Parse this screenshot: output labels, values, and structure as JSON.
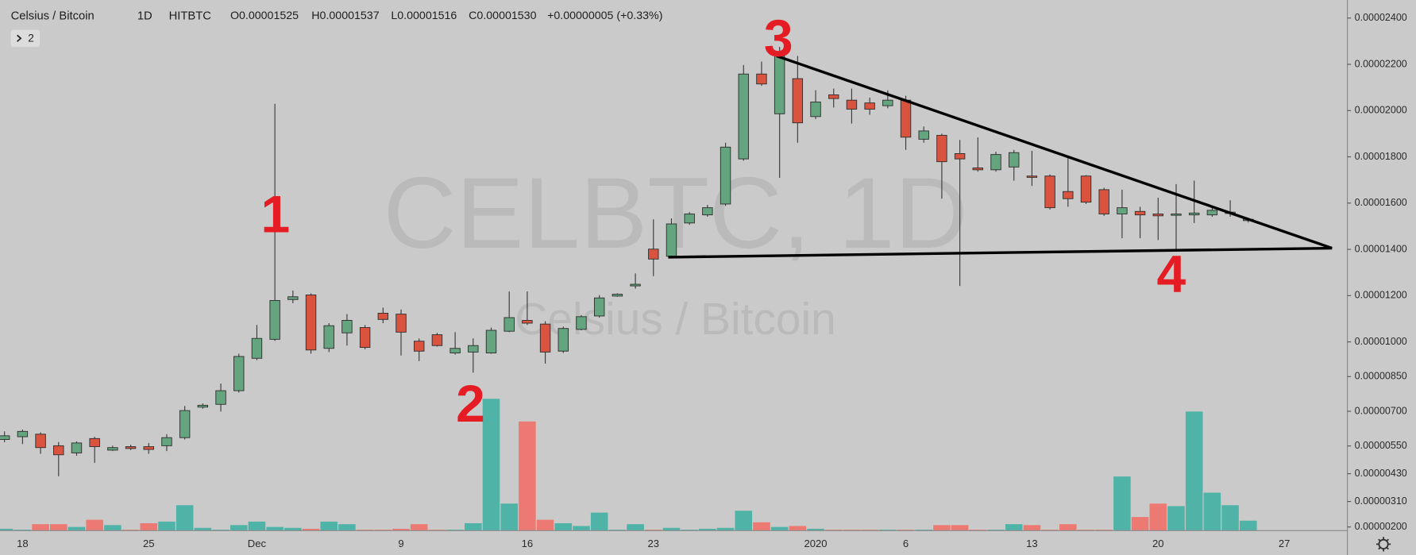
{
  "chart_data": {
    "type": "candlestick",
    "header": {
      "symbol": "Celsius / Bitcoin",
      "interval": "1D",
      "exchange": "HITBTC",
      "open": "O0.00001525",
      "high": "H0.00001537",
      "low": "L0.00001516",
      "close": "C0.00001530",
      "change": "+0.00000005 (+0.33%)",
      "indicators": 2
    },
    "watermark": [
      "CELBTC, 1D",
      "Celsius / Bitcoin"
    ],
    "annotations": [
      "1",
      "2",
      "3",
      "4"
    ],
    "categories": [
      null,
      "18",
      null,
      null,
      null,
      null,
      null,
      null,
      "25",
      null,
      null,
      null,
      null,
      null,
      "Dec",
      null,
      null,
      null,
      null,
      null,
      null,
      null,
      "9",
      null,
      null,
      null,
      null,
      null,
      null,
      "16",
      null,
      null,
      null,
      null,
      null,
      null,
      "23",
      null,
      null,
      null,
      null,
      null,
      null,
      null,
      null,
      "2020",
      null,
      null,
      null,
      null,
      "6",
      null,
      null,
      null,
      null,
      null,
      null,
      "13",
      null,
      null,
      null,
      null,
      null,
      null,
      "20",
      null,
      null,
      null,
      null,
      null,
      null,
      "27"
    ],
    "open": [
      5.78e-06,
      5.9e-06,
      6.01e-06,
      5.51e-06,
      5.2e-06,
      5.82e-06,
      5.32e-06,
      5.47e-06,
      5.47e-06,
      5.51e-06,
      5.86e-06,
      7.18e-06,
      7.3e-06,
      7.89e-06,
      9.29e-06,
      1.011e-05,
      1.183e-05,
      1.203e-05,
      9.72e-06,
      1.039e-05,
      1.062e-05,
      1.124e-05,
      1.12e-05,
      1.003e-05,
      1.031e-05,
      9.52e-06,
      9.56e-06,
      9.52e-06,
      1.046e-05,
      1.093e-05,
      1.077e-05,
      9.6e-06,
      1.054e-05,
      1.112e-05,
      1.198e-05,
      1.242e-05,
      1.401e-05,
      1.37e-05,
      1.514e-05,
      1.549e-05,
      1.596e-05,
      1.791e-05,
      2.158e-05,
      1.986e-05,
      2.138e-05,
      1.974e-05,
      2.068e-05,
      2.045e-05,
      2.033e-05,
      2.021e-05,
      2.045e-05,
      1.876e-05,
      1.893e-05,
      1.814e-05,
      1.752e-05,
      1.744e-05,
      1.756e-05,
      1.717e-05,
      1.717e-05,
      1.65e-05,
      1.717e-05,
      1.658e-05,
      1.553e-05,
      1.564e-05,
      1.553e-05,
      1.549e-05,
      1.549e-05,
      1.549e-05,
      1.557e-05,
      1.525e-05,
      null,
      null
    ],
    "high": [
      6.13e-06,
      6.21e-06,
      6.09e-06,
      5.67e-06,
      5.7e-06,
      5.9e-06,
      5.51e-06,
      5.55e-06,
      5.63e-06,
      6.01e-06,
      7.23e-06,
      7.34e-06,
      8.2e-06,
      9.49e-06,
      1.073e-05,
      2.029e-05,
      1.222e-05,
      1.21e-05,
      1.081e-05,
      1.12e-05,
      1.073e-05,
      1.148e-05,
      1.14e-05,
      1.015e-05,
      1.039e-05,
      1.042e-05,
      1.015e-05,
      1.062e-05,
      1.218e-05,
      1.218e-05,
      1.089e-05,
      1.066e-05,
      1.116e-05,
      1.202e-05,
      1.21e-05,
      1.296e-05,
      1.53e-05,
      1.534e-05,
      1.561e-05,
      1.592e-05,
      1.861e-05,
      2.197e-05,
      2.212e-05,
      2.275e-05,
      2.236e-05,
      2.088e-05,
      2.095e-05,
      2.095e-05,
      2.056e-05,
      2.088e-05,
      2.064e-05,
      1.931e-05,
      1.9e-05,
      1.873e-05,
      1.884e-05,
      1.822e-05,
      1.83e-05,
      1.826e-05,
      1.724e-05,
      1.795e-05,
      1.721e-05,
      1.666e-05,
      1.658e-05,
      1.584e-05,
      1.623e-05,
      1.682e-05,
      1.697e-05,
      1.588e-05,
      1.612e-05,
      1.537e-05,
      null,
      null
    ],
    "low": [
      5.66e-06,
      5.58e-06,
      5.16e-06,
      4.19e-06,
      5.08e-06,
      4.77e-06,
      5.28e-06,
      5.32e-06,
      5.16e-06,
      5.28e-06,
      5.78e-06,
      7.11e-06,
      6.99e-06,
      7.81e-06,
      9.21e-06,
      1.004e-05,
      1.167e-05,
      9.49e-06,
      9.56e-06,
      9.84e-06,
      9.68e-06,
      1.081e-05,
      9.41e-06,
      9.17e-06,
      9.8e-06,
      9.45e-06,
      8.67e-06,
      9.49e-06,
      1.042e-05,
      1.073e-05,
      9.06e-06,
      9.52e-06,
      1.05e-05,
      1.105e-05,
      1.195e-05,
      1.23e-05,
      1.284e-05,
      1.366e-05,
      1.506e-05,
      1.541e-05,
      1.588e-05,
      1.783e-05,
      2.107e-05,
      1.709e-05,
      1.861e-05,
      1.963e-05,
      2.013e-05,
      1.944e-05,
      1.982e-05,
      2.01e-05,
      1.83e-05,
      1.861e-05,
      1.619e-05,
      1.242e-05,
      1.736e-05,
      1.736e-05,
      1.697e-05,
      1.674e-05,
      1.572e-05,
      1.584e-05,
      1.596e-05,
      1.545e-05,
      1.448e-05,
      1.448e-05,
      1.44e-05,
      1.401e-05,
      1.514e-05,
      1.541e-05,
      1.541e-05,
      1.516e-05,
      null,
      null
    ],
    "close": [
      5.94e-06,
      6.13e-06,
      5.43e-06,
      5.12e-06,
      5.63e-06,
      5.47e-06,
      5.43e-06,
      5.39e-06,
      5.35e-06,
      5.86e-06,
      7.03e-06,
      7.26e-06,
      7.89e-06,
      9.37e-06,
      1.015e-05,
      1.179e-05,
      1.195e-05,
      9.65e-06,
      1.07e-05,
      1.093e-05,
      9.76e-06,
      1.097e-05,
      1.042e-05,
      9.6e-06,
      9.84e-06,
      9.72e-06,
      9.84e-06,
      1.05e-05,
      1.105e-05,
      1.081e-05,
      9.56e-06,
      1.058e-05,
      1.109e-05,
      1.19e-05,
      1.206e-05,
      1.249e-05,
      1.358e-05,
      1.51e-05,
      1.553e-05,
      1.58e-05,
      1.842e-05,
      2.158e-05,
      2.115e-05,
      2.236e-05,
      1.947e-05,
      2.037e-05,
      2.052e-05,
      2.006e-05,
      2.006e-05,
      2.045e-05,
      1.885e-05,
      1.912e-05,
      1.779e-05,
      1.791e-05,
      1.744e-05,
      1.81e-05,
      1.818e-05,
      1.713e-05,
      1.58e-05,
      1.619e-05,
      1.604e-05,
      1.553e-05,
      1.58e-05,
      1.549e-05,
      1.545e-05,
      1.553e-05,
      1.557e-05,
      1.569e-05,
      1.561e-05,
      1.53e-05,
      null,
      null
    ],
    "volume": [
      1.92e-06,
      1.88e-06,
      2.12e-06,
      2.12e-06,
      2e-06,
      2.31e-06,
      2.08e-06,
      1.88e-06,
      2.16e-06,
      2.23e-06,
      2.94e-06,
      1.96e-06,
      1.88e-06,
      2.08e-06,
      2.23e-06,
      2e-06,
      1.96e-06,
      1.92e-06,
      2.23e-06,
      2.12e-06,
      1.88e-06,
      1.88e-06,
      1.92e-06,
      2.12e-06,
      1.88e-06,
      1.88e-06,
      2.16e-06,
      7.54e-06,
      3.01e-06,
      6.56e-06,
      2.31e-06,
      2.16e-06,
      2.04e-06,
      2.62e-06,
      1.88e-06,
      2.12e-06,
      1.88e-06,
      1.96e-06,
      1.88e-06,
      1.92e-06,
      1.96e-06,
      2.7e-06,
      2.2e-06,
      2e-06,
      2.04e-06,
      1.92e-06,
      1.88e-06,
      1.88e-06,
      1.88e-06,
      1.88e-06,
      1.88e-06,
      1.88e-06,
      2.08e-06,
      2.08e-06,
      1.88e-06,
      1.88e-06,
      2.12e-06,
      2.08e-06,
      1.88e-06,
      2.12e-06,
      1.88e-06,
      1.88e-06,
      4.18e-06,
      2.43e-06,
      3.01e-06,
      2.9e-06,
      6.99e-06,
      3.48e-06,
      2.94e-06,
      2.27e-06,
      null,
      null
    ],
    "ylim": [
      1.84e-06,
      2.478e-05
    ],
    "yticks": [
      {
        "value": 2.4e-05,
        "label": "0.00002400"
      },
      {
        "value": 2.2e-05,
        "label": "0.00002200"
      },
      {
        "value": 2e-05,
        "label": "0.00002000"
      },
      {
        "value": 1.8e-05,
        "label": "0.00001800"
      },
      {
        "value": 1.6e-05,
        "label": "0.00001600"
      },
      {
        "value": 1.4e-05,
        "label": "0.00001400"
      },
      {
        "value": 1.2e-05,
        "label": "0.00001200"
      },
      {
        "value": 1e-05,
        "label": "0.00001000"
      },
      {
        "value": 8.5e-06,
        "label": "0.00000850"
      },
      {
        "value": 7e-06,
        "label": "0.00000700"
      },
      {
        "value": 5.5e-06,
        "label": "0.00000550"
      },
      {
        "value": 4.3e-06,
        "label": "0.00000430"
      },
      {
        "value": 3.1e-06,
        "label": "0.00000310"
      },
      {
        "value": 2e-06,
        "label": "0.00000200"
      }
    ],
    "grid": false,
    "up_color": "#64a47e",
    "down_color": "#d9533f",
    "volume_up_color": "#4fb3a7",
    "volume_down_color": "#ec7a72"
  }
}
